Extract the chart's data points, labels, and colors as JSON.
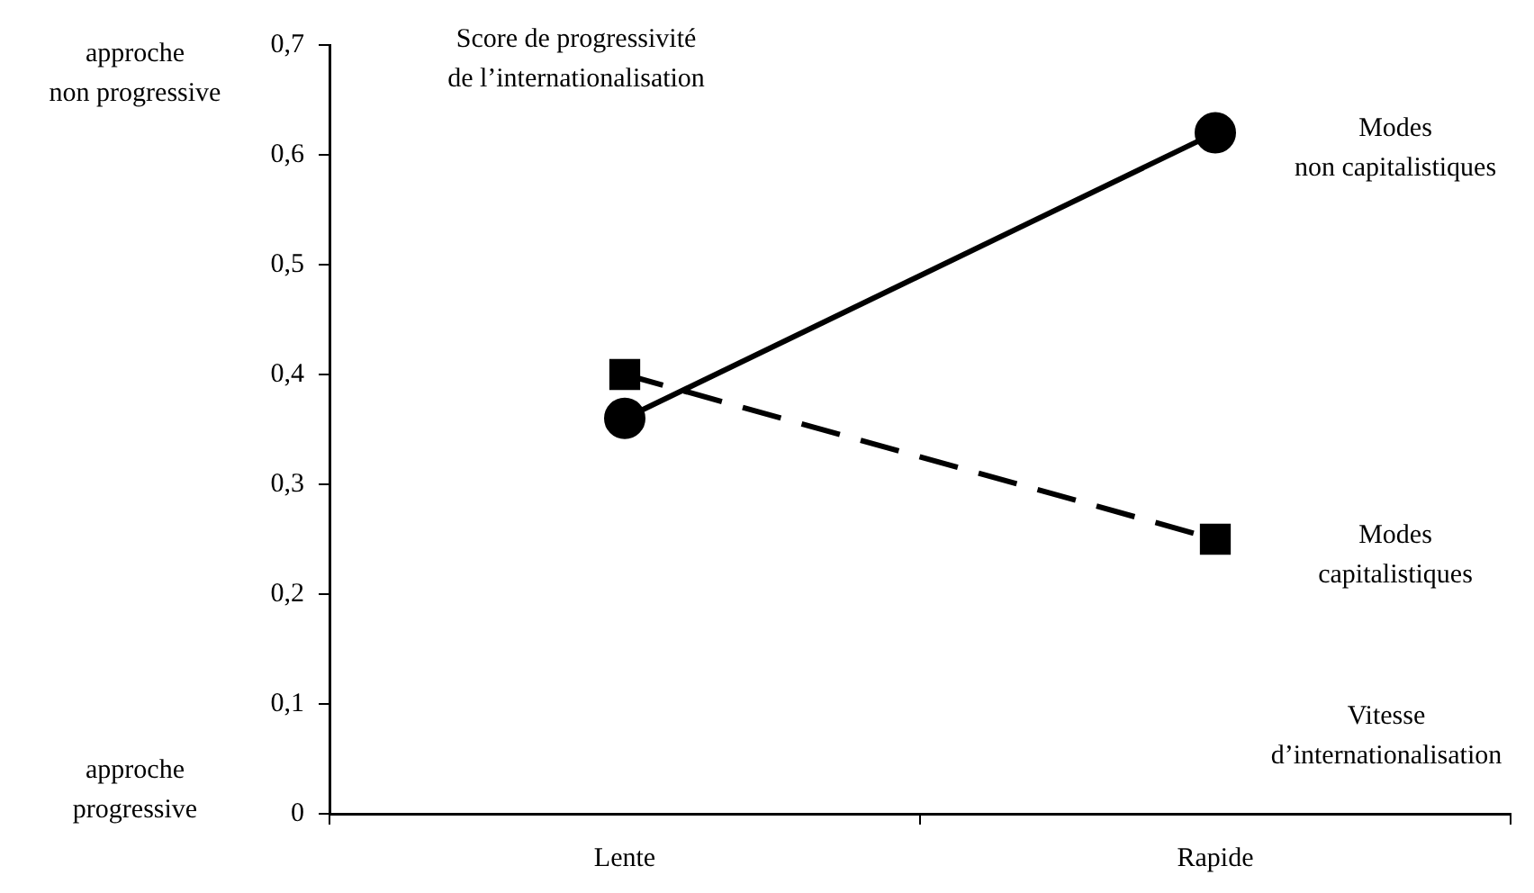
{
  "chart_data": {
    "type": "line",
    "ylabel": "Score de progressivité\nde l’internationalisation",
    "xlabel": "Vitesse\nd’internationalisation",
    "annotations": [
      "approche\nnon progressive",
      "approche\nprogressive"
    ],
    "categories": [
      "Lente",
      "Rapide"
    ],
    "series": [
      {
        "name": "Modes\nnon capitalistiques",
        "color": "#000000",
        "values": [
          0.36,
          0.62
        ],
        "marker": "circle",
        "line_style": "solid"
      },
      {
        "name": "Modes\ncapitalistiques",
        "color": "#000000",
        "values": [
          0.4,
          0.25
        ],
        "marker": "square",
        "line_style": "dashed"
      }
    ],
    "ylim": [
      0,
      0.7
    ],
    "yticks": [
      0,
      {
        "value": 0.1,
        "label": "0,1"
      },
      {
        "value": 0.2,
        "label": "0,2"
      },
      {
        "value": 0.3,
        "label": "0,3"
      },
      {
        "value": 0.4,
        "label": "0,4"
      },
      {
        "value": 0.5,
        "label": "0,5"
      },
      {
        "value": 0.6,
        "label": "0,6"
      },
      {
        "value": 0.7,
        "label": "0,7"
      }
    ],
    "grid": false,
    "legend": false
  }
}
